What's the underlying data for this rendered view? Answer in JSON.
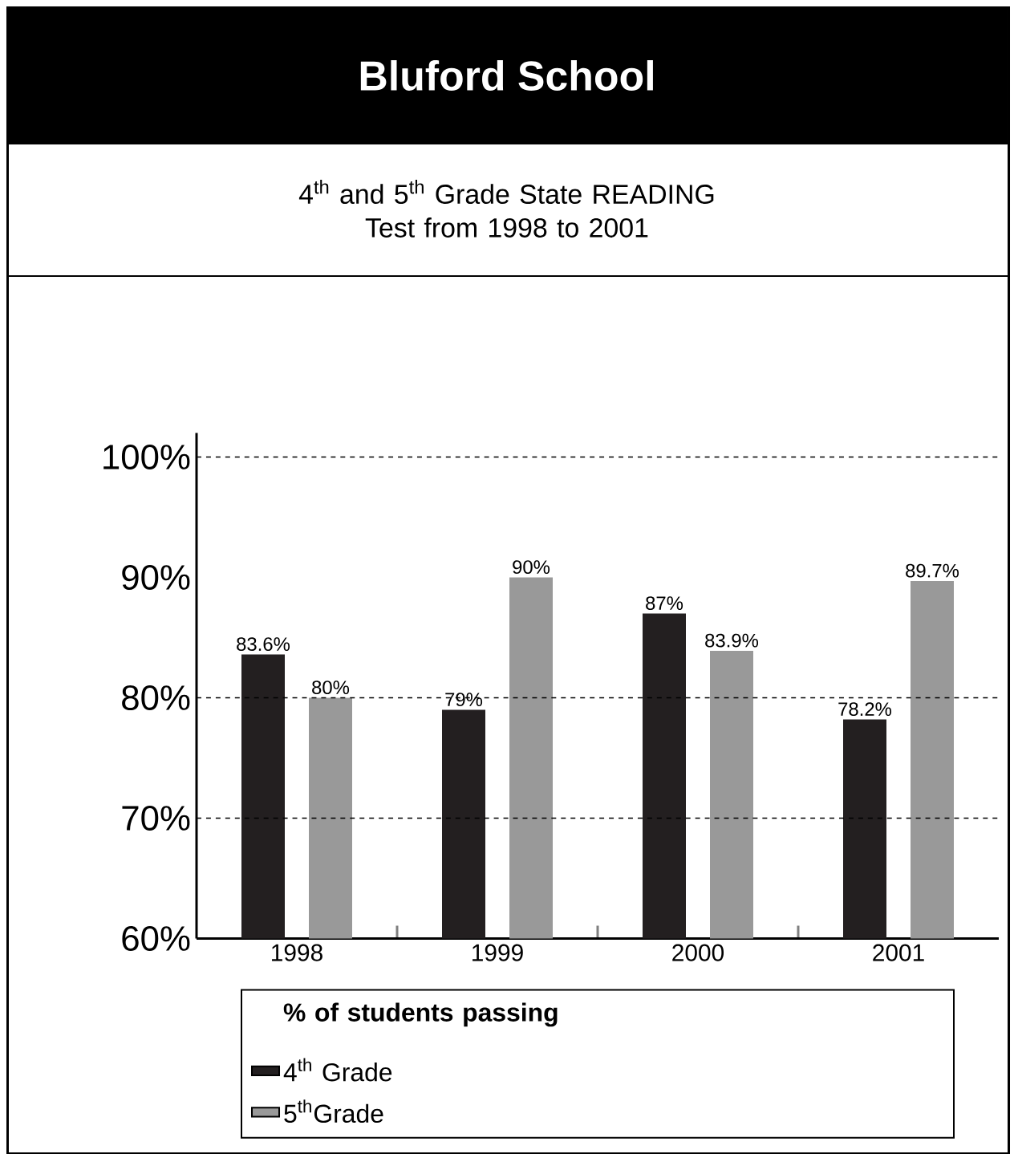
{
  "chart_data": {
    "type": "bar",
    "title": "Bluford School",
    "subtitle": "4$^{th}$ and 5$^{th}$ Grade State READING Test from 1998 to 2001",
    "legend_title": "% of students passing",
    "categories": [
      "1998",
      "1999",
      "2000",
      "2001"
    ],
    "series": [
      {
        "name": "4$^{th}$ Grade",
        "color": "#231f20",
        "values": [
          83.6,
          79,
          87,
          78.2
        ],
        "value_labels": [
          "83.6%",
          "79%",
          "87%",
          "78.2%"
        ]
      },
      {
        "name": "5$^{th}$Grade",
        "color": "#999999",
        "values": [
          80,
          90,
          83.9,
          89.7
        ],
        "value_labels": [
          "80%",
          "90%",
          "83.9%",
          "89.7%"
        ]
      }
    ],
    "ylim": [
      60,
      102
    ],
    "yticks": [
      {
        "value": 60,
        "label": "60%"
      },
      {
        "value": 70,
        "label": "70%"
      },
      {
        "value": 80,
        "label": "80%"
      },
      {
        "value": 90,
        "label": "90%"
      },
      {
        "value": 100,
        "label": "100%"
      }
    ],
    "ref_lines": [
      {
        "axis": "y",
        "value": 100,
        "line_style": "dashed"
      },
      {
        "axis": "y",
        "value": 80,
        "line_style": "dashed"
      },
      {
        "axis": "y",
        "value": 70,
        "line_style": "dashed"
      }
    ],
    "legend": "bottom"
  }
}
